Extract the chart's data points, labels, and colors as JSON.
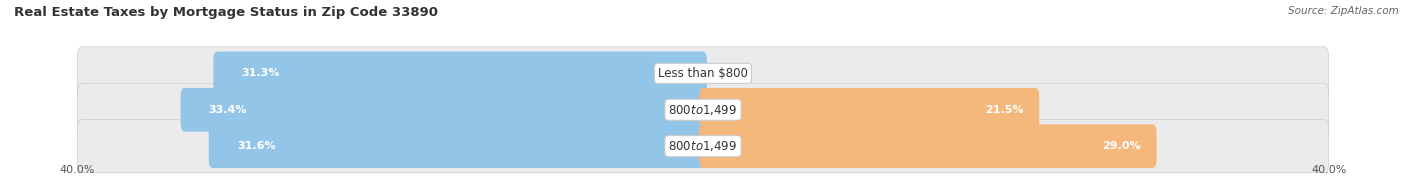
{
  "title": "Real Estate Taxes by Mortgage Status in Zip Code 33890",
  "source": "Source: ZipAtlas.com",
  "rows": [
    {
      "label": "Less than $800",
      "without_mortgage": 31.3,
      "with_mortgage": 0.0
    },
    {
      "label": "$800 to $1,499",
      "without_mortgage": 33.4,
      "with_mortgage": 21.5
    },
    {
      "label": "$800 to $1,499",
      "without_mortgage": 31.6,
      "with_mortgage": 29.0
    }
  ],
  "x_max": 40.0,
  "color_without": "#92C5E8",
  "color_with": "#F5B87C",
  "row_bg_color": "#EBEBEB",
  "title_fontsize": 9.5,
  "source_fontsize": 7.5,
  "label_fontsize": 8.5,
  "pct_fontsize": 8,
  "axis_label_fontsize": 8,
  "legend_fontsize": 8.5,
  "title_color": "#333333",
  "source_color": "#666666",
  "text_color_on_bar": "#ffffff",
  "label_text_color": "#333333"
}
